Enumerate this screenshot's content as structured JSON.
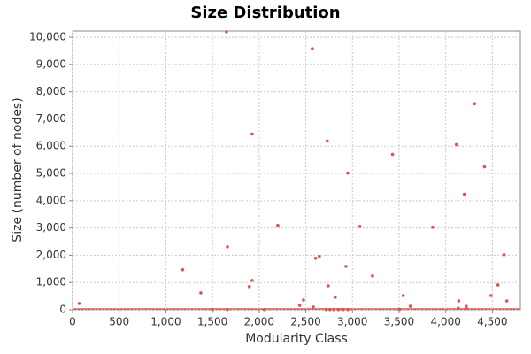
{
  "chart_data": {
    "type": "scatter",
    "title": "Size Distribution",
    "x_label": "Modularity Class",
    "y_label": "Size (number of nodes)",
    "color": "#e0544c",
    "grid": true,
    "xlim": [
      0,
      4800
    ],
    "ylim": [
      0,
      10230
    ],
    "xticks": [
      0,
      500,
      {
        "value": 1000,
        "label": "1,000"
      },
      {
        "value": 1500,
        "label": "1,500"
      },
      {
        "value": 2000,
        "label": "2,000"
      },
      {
        "value": 2500,
        "label": "2,500"
      },
      {
        "value": 3000,
        "label": "3,000"
      },
      {
        "value": 3500,
        "label": "3,500"
      },
      {
        "value": 4000,
        "label": "4,000"
      },
      {
        "value": 4500,
        "label": "4,500"
      }
    ],
    "yticks": [
      0,
      {
        "value": 1000,
        "label": "1,000"
      },
      {
        "value": 2000,
        "label": "2,000"
      },
      {
        "value": 3000,
        "label": "3,000"
      },
      {
        "value": 4000,
        "label": "4,000"
      },
      {
        "value": 5000,
        "label": "5,000"
      },
      {
        "value": 6000,
        "label": "6,000"
      },
      {
        "value": 7000,
        "label": "7,000"
      },
      {
        "value": 8000,
        "label": "8,000"
      },
      {
        "value": 9000,
        "label": "9,000"
      },
      {
        "value": 10000,
        "label": "10,000"
      }
    ],
    "x": [
      70,
      1180,
      1375,
      1500,
      1650,
      1660,
      1660,
      1895,
      1925,
      1925,
      2055,
      2200,
      2435,
      2475,
      2570,
      2580,
      2605,
      2645,
      2730,
      2740,
      2720,
      2760,
      2800,
      2850,
      2900,
      2815,
      2930,
      2950,
      2950,
      3080,
      3215,
      3430,
      3505,
      3545,
      3620,
      3860,
      4115,
      4140,
      4135,
      4200,
      4220,
      4220,
      4310,
      4415,
      4485,
      4560,
      4625,
      4655
    ],
    "values": [
      230,
      1470,
      620,
      10,
      10200,
      10,
      2310,
      850,
      1075,
      6450,
      10,
      3095,
      160,
      360,
      9580,
      100,
      1890,
      1955,
      6190,
      880,
      10,
      10,
      10,
      10,
      10,
      455,
      1595,
      5015,
      10,
      3060,
      1240,
      5700,
      20,
      520,
      130,
      3030,
      6060,
      325,
      60,
      4235,
      60,
      130,
      7560,
      5245,
      520,
      910,
      2020,
      325
    ]
  }
}
